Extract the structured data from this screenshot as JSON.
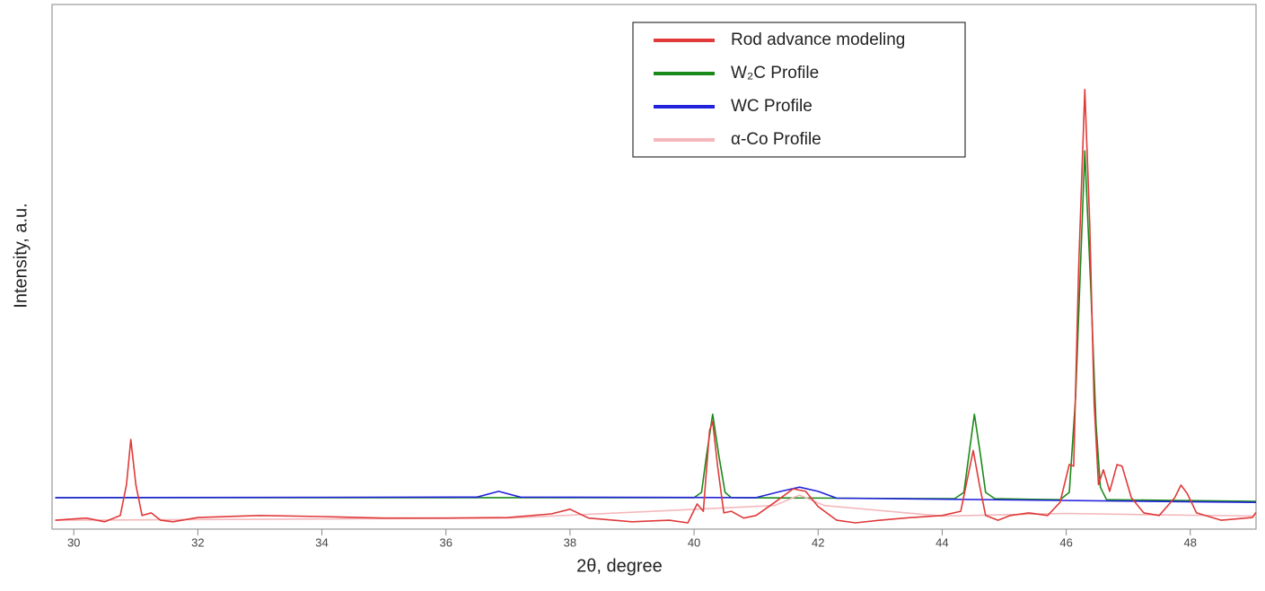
{
  "chart_data": {
    "type": "line",
    "x_label": "2θ, degree",
    "y_label": "Intensity, a.u.",
    "xlim": [
      29.65,
      49.06
    ],
    "ylim": [
      0,
      100
    ],
    "xticks": [
      30,
      32,
      34,
      36,
      38,
      40,
      42,
      44,
      46,
      48
    ],
    "series": [
      {
        "name": "W₂C Profile",
        "color": "#1a8a1a",
        "x": [
          29.7,
          40.0,
          40.12,
          40.2,
          40.3,
          40.4,
          40.5,
          40.6,
          44.2,
          44.35,
          44.43,
          44.52,
          44.62,
          44.7,
          44.85,
          45.9,
          46.05,
          46.15,
          46.3,
          46.4,
          46.48,
          46.55,
          46.65,
          49.06
        ],
        "values": [
          6.0,
          6.0,
          7.0,
          14.0,
          21.9,
          14.0,
          7.0,
          6.0,
          5.8,
          7.0,
          14.0,
          21.9,
          14.0,
          7.0,
          5.8,
          5.6,
          7.0,
          25.0,
          72.1,
          45.0,
          20.0,
          8.0,
          5.6,
          5.3
        ]
      },
      {
        "name": "WC Profile",
        "color": "#2222dd",
        "x": [
          29.7,
          36.5,
          36.85,
          37.2,
          41.0,
          41.4,
          41.7,
          42.0,
          42.3,
          49.06
        ],
        "values": [
          6.0,
          6.1,
          7.2,
          6.1,
          6.0,
          7.2,
          8.0,
          7.2,
          5.9,
          5.1
        ]
      },
      {
        "name": "α-Co Profile",
        "color": "#f4b8bc",
        "x": [
          29.7,
          37.0,
          41.3,
          41.7,
          42.1,
          44.0,
          46.0,
          47.0,
          49.06
        ],
        "values": [
          1.7,
          2.1,
          4.5,
          6.5,
          4.5,
          2.5,
          3.0,
          2.8,
          2.5
        ]
      },
      {
        "name": "Rod advance modeling",
        "color": "#e03a3a",
        "x": [
          29.7,
          30.2,
          30.5,
          30.75,
          30.85,
          30.92,
          31.0,
          31.1,
          31.25,
          31.4,
          31.6,
          32.0,
          33.0,
          34.0,
          35.0,
          36.0,
          37.0,
          37.7,
          38.0,
          38.3,
          39.0,
          39.6,
          39.9,
          40.05,
          40.15,
          40.25,
          40.3,
          40.38,
          40.48,
          40.6,
          40.8,
          41.0,
          41.3,
          41.6,
          41.8,
          42.0,
          42.3,
          42.6,
          43.0,
          43.5,
          44.0,
          44.3,
          44.42,
          44.5,
          44.6,
          44.7,
          44.9,
          45.1,
          45.4,
          45.7,
          45.9,
          46.05,
          46.12,
          46.2,
          46.3,
          46.38,
          46.45,
          46.52,
          46.6,
          46.7,
          46.82,
          46.9,
          47.05,
          47.25,
          47.5,
          47.75,
          47.85,
          47.95,
          48.1,
          48.5,
          49.0,
          49.06
        ],
        "values": [
          1.7,
          2.1,
          1.4,
          2.6,
          8.5,
          17.1,
          8.5,
          2.6,
          3.1,
          1.7,
          1.4,
          2.2,
          2.6,
          2.4,
          2.1,
          2.1,
          2.2,
          2.9,
          3.8,
          2.1,
          1.4,
          1.7,
          1.2,
          4.8,
          3.4,
          18.8,
          20.5,
          12.0,
          3.1,
          3.4,
          2.1,
          2.6,
          5.1,
          7.7,
          7.2,
          4.3,
          1.7,
          1.2,
          1.7,
          2.2,
          2.6,
          3.4,
          10.3,
          15.0,
          8.5,
          2.6,
          1.7,
          2.6,
          3.1,
          2.6,
          5.1,
          12.3,
          12.0,
          49.6,
          83.8,
          58.1,
          23.9,
          8.5,
          11.3,
          7.2,
          12.3,
          12.0,
          6.0,
          3.1,
          2.6,
          6.0,
          8.4,
          6.8,
          3.1,
          1.7,
          2.2,
          3.2
        ]
      }
    ]
  }
}
